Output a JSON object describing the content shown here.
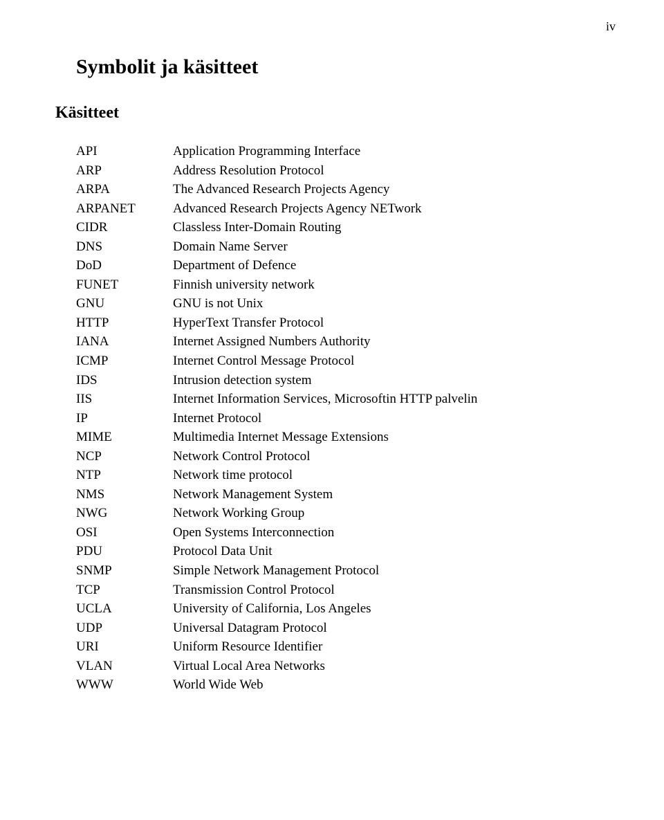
{
  "page_number": "iv",
  "title": "Symbolit ja käsitteet",
  "subtitle": "Käsitteet",
  "definitions": [
    {
      "abbr": "API",
      "def": "Application Programming Interface"
    },
    {
      "abbr": "ARP",
      "def": "Address Resolution Protocol"
    },
    {
      "abbr": "ARPA",
      "def": "The Advanced Research Projects Agency"
    },
    {
      "abbr": "ARPANET",
      "def": "Advanced Research Projects Agency NETwork"
    },
    {
      "abbr": "CIDR",
      "def": "Classless Inter-Domain Routing"
    },
    {
      "abbr": "DNS",
      "def": "Domain Name Server"
    },
    {
      "abbr": "DoD",
      "def": "Department of Defence"
    },
    {
      "abbr": "FUNET",
      "def": "Finnish university network"
    },
    {
      "abbr": "GNU",
      "def": "GNU is not Unix"
    },
    {
      "abbr": "HTTP",
      "def": "HyperText Transfer Protocol"
    },
    {
      "abbr": "IANA",
      "def": "Internet Assigned Numbers Authority"
    },
    {
      "abbr": "ICMP",
      "def": "Internet Control Message Protocol"
    },
    {
      "abbr": "IDS",
      "def": "Intrusion detection system"
    },
    {
      "abbr": "IIS",
      "def": "Internet Information Services, Microsoftin HTTP palvelin"
    },
    {
      "abbr": "IP",
      "def": "Internet Protocol"
    },
    {
      "abbr": "MIME",
      "def": "Multimedia Internet Message Extensions"
    },
    {
      "abbr": "NCP",
      "def": "Network Control Protocol"
    },
    {
      "abbr": "NTP",
      "def": "Network time protocol"
    },
    {
      "abbr": "NMS",
      "def": "Network Management System"
    },
    {
      "abbr": "NWG",
      "def": "Network Working Group"
    },
    {
      "abbr": "OSI",
      "def": "Open Systems Interconnection"
    },
    {
      "abbr": "PDU",
      "def": " Protocol Data Unit"
    },
    {
      "abbr": "SNMP",
      "def": " Simple Network Management Protocol"
    },
    {
      "abbr": "TCP",
      "def": "Transmission Control Protocol"
    },
    {
      "abbr": "UCLA",
      "def": "University of California, Los Angeles"
    },
    {
      "abbr": "UDP",
      "def": "Universal Datagram Protocol"
    },
    {
      "abbr": "URI",
      "def": "Uniform Resource Identifier"
    },
    {
      "abbr": "VLAN",
      "def": "Virtual Local Area Networks"
    },
    {
      "abbr": "WWW",
      "def": "World Wide Web"
    }
  ]
}
